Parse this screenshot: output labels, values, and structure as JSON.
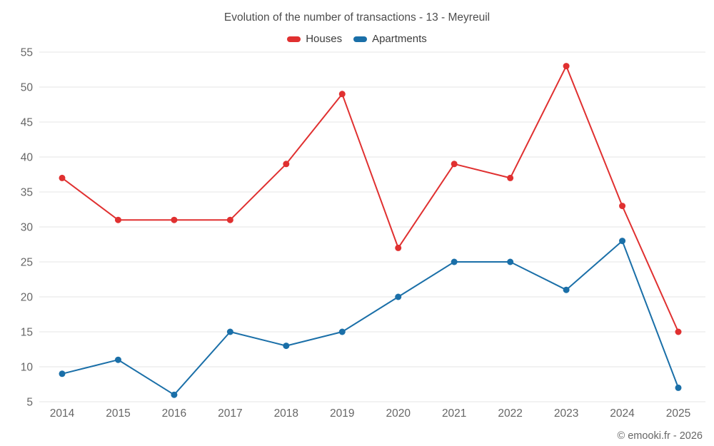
{
  "footer": {
    "credit": "© emooki.fr - 2026"
  },
  "colors": {
    "houses": "#e03030",
    "apartments": "#1a6fa8",
    "grid": "#e4e4e4",
    "tick_text": "#666666",
    "title_text": "#4d4d4d"
  },
  "chart_data": {
    "type": "line",
    "title": "Evolution of the number of transactions - 13 - Meyreuil",
    "xlabel": "",
    "ylabel": "",
    "x": [
      "2014",
      "2015",
      "2016",
      "2017",
      "2018",
      "2019",
      "2020",
      "2021",
      "2022",
      "2023",
      "2024",
      "2025"
    ],
    "series": [
      {
        "name": "Houses",
        "color": "#e03030",
        "values": [
          37,
          31,
          31,
          31,
          39,
          49,
          27,
          39,
          37,
          53,
          33,
          15
        ]
      },
      {
        "name": "Apartments",
        "color": "#1a6fa8",
        "values": [
          9,
          11,
          6,
          15,
          13,
          15,
          20,
          25,
          25,
          21,
          28,
          7
        ]
      }
    ],
    "ylim": [
      5,
      55
    ],
    "ytick_step": 5,
    "grid": "horizontal",
    "legend_position": "top"
  }
}
